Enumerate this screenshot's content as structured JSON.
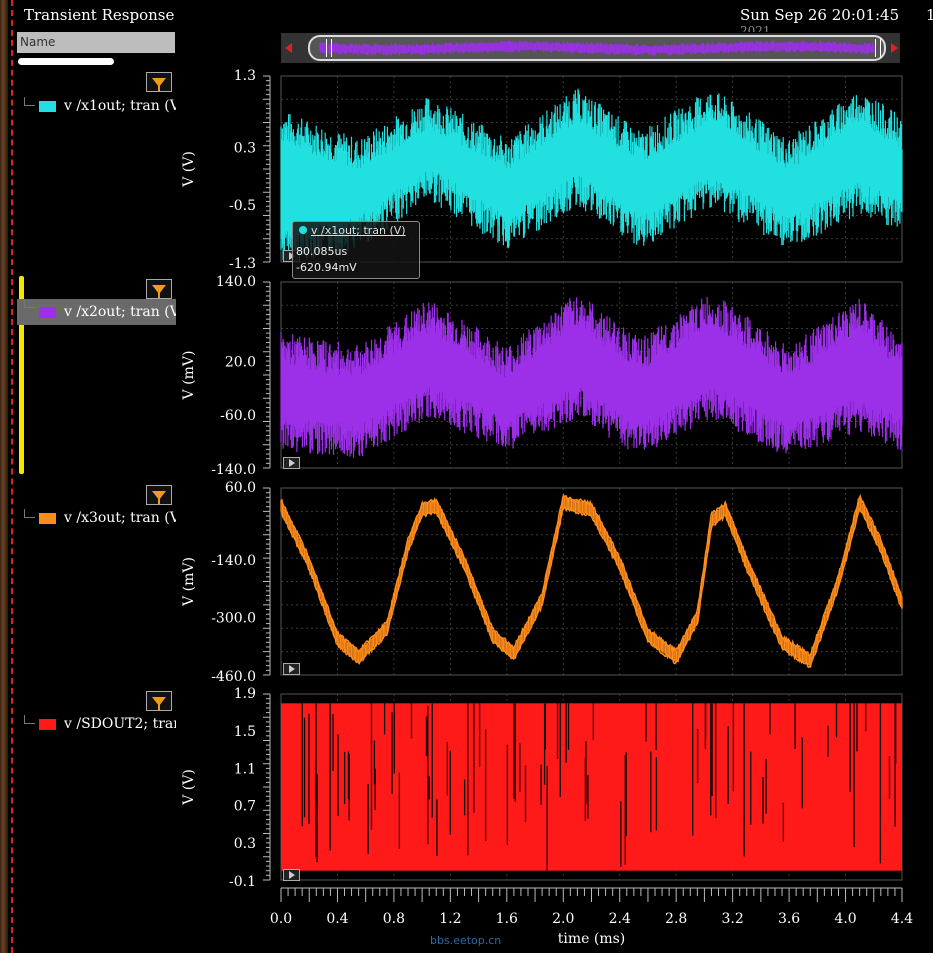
{
  "window": {
    "title": "Transient Response",
    "datetime": "Sun Sep 26 20:01:45",
    "datetime_line2": "2021",
    "corner_digit": "1"
  },
  "panel": {
    "name_header": "Name"
  },
  "signals": [
    {
      "label": "v /x1out; tran (V",
      "color": "#23e0e0"
    },
    {
      "label": "v /x2out; tran (V",
      "color": "#9b30e8"
    },
    {
      "label": "v /x3out; tran (V",
      "color": "#ff8c1a"
    },
    {
      "label": "v /SDOUT2; tran",
      "color": "#ff1a1a"
    }
  ],
  "marker": {
    "label": "v /x1out; tran (V)",
    "x_value": "80.085us",
    "y_value": "-620.94mV"
  },
  "watermark": "bbs.eetop.cn",
  "chart_data": {
    "type": "line",
    "title": "Transient Response",
    "xlabel": "time (ms)",
    "xlim": [
      0.0,
      4.4
    ],
    "x_ticks": [
      "0.0",
      "0.4",
      "0.8",
      "1.2",
      "1.6",
      "2.0",
      "2.4",
      "2.8",
      "3.2",
      "3.6",
      "4.0",
      "4.4"
    ],
    "grid": true,
    "strips": [
      {
        "series": "v /x1out; tran (V)",
        "ylabel": "V (V)",
        "ylim": [
          -1.3,
          1.3
        ],
        "y_ticks": [
          "1.3",
          "0.3",
          "-0.5",
          "-1.3"
        ],
        "color": "#23e0e0",
        "x": [
          0.0,
          0.55,
          1.05,
          1.6,
          2.1,
          2.55,
          3.05,
          3.6,
          4.1,
          4.4
        ],
        "envelope_upper": [
          0.6,
          0.2,
          0.8,
          0.2,
          0.9,
          0.3,
          0.9,
          0.2,
          0.9,
          0.5
        ],
        "envelope_lower": [
          -1.1,
          -0.9,
          -0.2,
          -0.9,
          -0.3,
          -0.9,
          -0.3,
          -0.9,
          -0.4,
          -0.7
        ]
      },
      {
        "series": "v /x2out; tran (mV)",
        "ylabel": "V (mV)",
        "ylim": [
          -140.0,
          140.0
        ],
        "y_ticks": [
          "140.0",
          "20.0",
          "-60.0",
          "-140.0"
        ],
        "color": "#9b30e8",
        "x": [
          0.0,
          0.55,
          1.05,
          1.6,
          2.1,
          2.55,
          3.05,
          3.6,
          4.1,
          4.4
        ],
        "envelope_upper": [
          40,
          20,
          90,
          20,
          100,
          30,
          100,
          20,
          90,
          30
        ],
        "envelope_lower": [
          -90,
          -100,
          -40,
          -90,
          -40,
          -100,
          -40,
          -100,
          -60,
          -90
        ]
      },
      {
        "series": "v /x3out; tran (mV)",
        "ylabel": "V (mV)",
        "ylim": [
          -460.0,
          60.0
        ],
        "y_ticks": [
          "60.0",
          "-140.0",
          "-300.0",
          "-460.0"
        ],
        "color": "#ff8c1a",
        "x": [
          0.0,
          0.2,
          0.4,
          0.55,
          0.75,
          0.9,
          1.0,
          1.1,
          1.3,
          1.5,
          1.65,
          1.85,
          2.0,
          2.2,
          2.4,
          2.6,
          2.8,
          2.95,
          3.05,
          3.15,
          3.3,
          3.55,
          3.75,
          3.95,
          4.1,
          4.25,
          4.4
        ],
        "y": [
          10,
          -150,
          -360,
          -410,
          -330,
          -100,
          0,
          10,
          -150,
          -350,
          -400,
          -250,
          20,
          0,
          -150,
          -350,
          -410,
          -300,
          -30,
          0,
          -150,
          -370,
          -420,
          -200,
          20,
          -100,
          -260
        ]
      },
      {
        "series": "v /SDOUT2; tran (V)",
        "ylabel": "V (V)",
        "ylim": [
          -0.1,
          1.9
        ],
        "y_ticks": [
          "1.9",
          "1.5",
          "1.1",
          "0.7",
          "0.3",
          "-0.1"
        ],
        "color": "#ff1a1a",
        "signal_high": 1.8,
        "signal_low": 0.0
      }
    ]
  }
}
